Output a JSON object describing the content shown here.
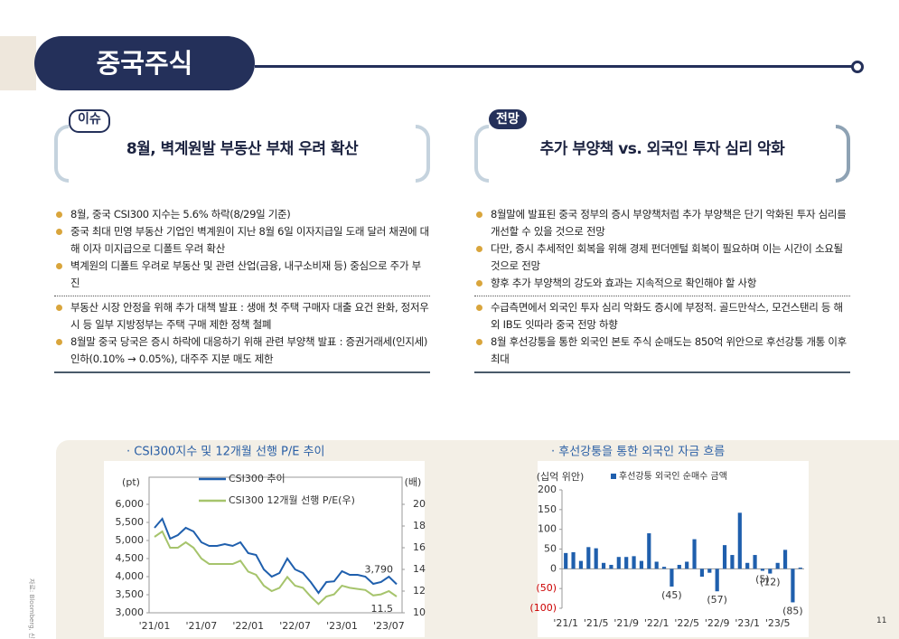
{
  "header": {
    "title": "중국주식"
  },
  "sections": [
    {
      "tag": "이슈",
      "heading": "8월, 벽계원발 부동산 부채 우려 확산",
      "groups": [
        [
          "8월, 중국 CSI300 지수는 5.6% 하락(8/29일 기준)",
          "중국 최대 민영 부동산 기업인 벽계원이 지난 8월 6일 이자지급일 도래 달러 채권에 대해 이자 미지급으로 디폴트 우려 확산",
          "벽계원의 디폴트 우려로 부동산 및 관련 산업(금융, 내구소비재 등) 중심으로 주가 부진"
        ],
        [
          "부동산 시장 안정을 위해 추가 대책 발표 : 생애 첫 주택 구매자 대출 요건 완화, 정저우시 등 일부 지방정부는 주택 구매 제한 정책 철폐",
          "8월말 중국 당국은 증시 하락에 대응하기 위해 관련 부양책 발표 : 증권거래세(인지세) 인하(0.10% → 0.05%), 대주주 지분 매도 제한"
        ]
      ]
    },
    {
      "tag": "전망",
      "heading": "추가 부양책 vs. 외국인 투자 심리 악화",
      "groups": [
        [
          "8월말에 발표된 중국 정부의 증시 부양책처럼 추가 부양책은 단기 악화된 투자 심리를 개선할 수 있을 것으로 전망",
          "다만, 증시 추세적인 회복을 위해 경제 펀더멘털 회복이 필요하며 이는 시간이 소요될 것으로 전망",
          "향후 추가 부양책의 강도와 효과는 지속적으로 확인해야 할 사항"
        ],
        [
          "수급측면에서 외국인 투자 심리 악화도 증시에 부정적. 골드만삭스, 모건스탠리 등 해외 IB도 잇따라 중국 전망 하향",
          "8월 후선강퉁을 통한 외국인 본토 주식 순매도는 850억 위안으로 후선강퉁 개통 이후 최대"
        ]
      ]
    }
  ],
  "chart_data": [
    {
      "type": "line",
      "title": "· CSI300지수 및 12개월 선행 P/E 추이",
      "y_label": "(pt)",
      "y2_label": "(배)",
      "categories": [
        "'21/01",
        null,
        null,
        null,
        null,
        null,
        "'21/07",
        null,
        null,
        null,
        null,
        null,
        "'22/01",
        null,
        null,
        null,
        null,
        null,
        "'22/07",
        null,
        null,
        null,
        null,
        null,
        "'23/01",
        null,
        null,
        null,
        null,
        null,
        "'23/07",
        null
      ],
      "series": [
        {
          "name": "CSI300 추이",
          "color": "#1f5fad",
          "values": [
            5350,
            5600,
            5050,
            5150,
            5350,
            5250,
            4950,
            4850,
            4850,
            4900,
            4850,
            4950,
            4650,
            4600,
            4200,
            4000,
            4100,
            4500,
            4200,
            4100,
            3850,
            3550,
            3850,
            3870,
            4150,
            4050,
            4050,
            4000,
            3800,
            3850,
            4000,
            3790
          ],
          "value_labels": [
            null,
            null,
            null,
            null,
            null,
            null,
            null,
            null,
            null,
            null,
            null,
            null,
            null,
            null,
            null,
            null,
            null,
            null,
            null,
            null,
            null,
            null,
            null,
            null,
            null,
            null,
            null,
            null,
            null,
            null,
            null,
            "3,790"
          ]
        },
        {
          "name": "CSI300 12개월 선행 P/E(우)",
          "color": "#a6c46c",
          "axis": "y2",
          "values": [
            17,
            17.5,
            16,
            16,
            16.5,
            16,
            15,
            14.5,
            14.5,
            14.5,
            14.5,
            14.8,
            13.8,
            13.5,
            12.5,
            12,
            12.3,
            13.3,
            12.5,
            12.3,
            11.5,
            10.8,
            11.5,
            11.7,
            12.5,
            12.3,
            12.2,
            12.1,
            11.6,
            11.7,
            12,
            11.5
          ],
          "value_labels": [
            null,
            null,
            null,
            null,
            null,
            null,
            null,
            null,
            null,
            null,
            null,
            null,
            null,
            null,
            null,
            null,
            null,
            null,
            null,
            null,
            null,
            null,
            null,
            null,
            null,
            null,
            null,
            null,
            null,
            null,
            null,
            "11.5"
          ]
        }
      ],
      "ylim": [
        3000,
        6000
      ],
      "yticks": [
        {
          "value": 3000,
          "label": "3,000"
        },
        {
          "value": 3500,
          "label": "3,500"
        },
        {
          "value": 4000,
          "label": "4,000"
        },
        {
          "value": 4500,
          "label": "4,500"
        },
        {
          "value": 5000,
          "label": "5,000"
        },
        {
          "value": 5500,
          "label": "5,500"
        },
        {
          "value": 6000,
          "label": "6,000"
        }
      ],
      "y2lim": [
        10,
        20
      ],
      "y2ticks": [
        10,
        12,
        14,
        16,
        18,
        20
      ]
    },
    {
      "type": "bar",
      "title": "· 후선강퉁을 통한 외국인 자금 흐름",
      "y_label": "(십억 위안)",
      "categories": [
        "'21/1",
        null,
        null,
        null,
        "'21/5",
        null,
        null,
        null,
        "'21/9",
        null,
        null,
        null,
        "'22/1",
        null,
        null,
        null,
        "'22/5",
        null,
        null,
        null,
        "'22/9",
        null,
        null,
        null,
        "'23/1",
        null,
        null,
        null,
        "'23/5",
        null,
        null,
        null
      ],
      "series": [
        {
          "name": "후선강퉁 외국인 순매수 금액",
          "color": "#1f5fad",
          "values": [
            40,
            42,
            20,
            55,
            52,
            15,
            10,
            30,
            30,
            32,
            20,
            90,
            18,
            5,
            -45,
            10,
            18,
            75,
            -20,
            -10,
            -57,
            60,
            35,
            142,
            15,
            35,
            -5,
            -12,
            15,
            48,
            -85,
            3
          ],
          "value_labels": [
            null,
            null,
            null,
            null,
            null,
            null,
            null,
            null,
            null,
            null,
            null,
            null,
            null,
            null,
            "(45)",
            null,
            null,
            null,
            null,
            null,
            "(57)",
            null,
            null,
            null,
            null,
            null,
            "(5)",
            "(12)",
            null,
            null,
            "(85)",
            null
          ]
        }
      ],
      "ylim": [
        -100,
        200
      ],
      "yticks": [
        {
          "value": -100,
          "label": "(100)"
        },
        {
          "value": -50,
          "label": "(50)"
        },
        0,
        50,
        100,
        150,
        200
      ]
    }
  ],
  "source": "자료: Bloomberg, 신한투자증권",
  "page": "11"
}
